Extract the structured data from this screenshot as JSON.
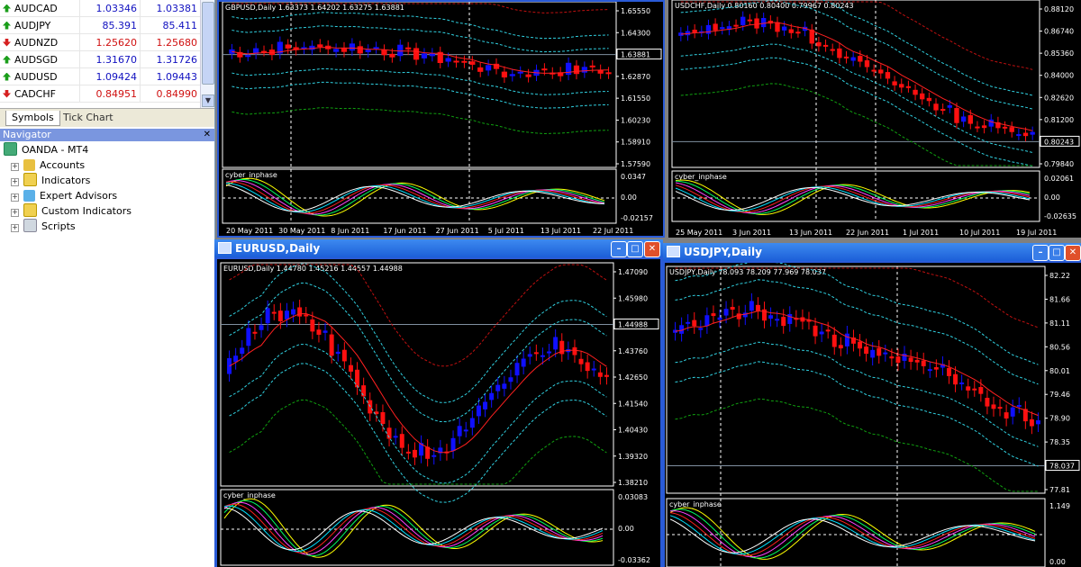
{
  "market_watch": {
    "rows": [
      {
        "symbol": "AUDCAD",
        "bid": "1.03346",
        "ask": "1.03381",
        "dir": "up",
        "color": "#1010c0"
      },
      {
        "symbol": "AUDJPY",
        "bid": "85.391",
        "ask": "85.411",
        "dir": "up",
        "color": "#1010c0"
      },
      {
        "symbol": "AUDNZD",
        "bid": "1.25620",
        "ask": "1.25680",
        "dir": "down",
        "color": "#d01010"
      },
      {
        "symbol": "AUDSGD",
        "bid": "1.31670",
        "ask": "1.31726",
        "dir": "up",
        "color": "#1010c0"
      },
      {
        "symbol": "AUDUSD",
        "bid": "1.09424",
        "ask": "1.09443",
        "dir": "up",
        "color": "#1010c0"
      },
      {
        "symbol": "CADCHF",
        "bid": "0.84951",
        "ask": "0.84990",
        "dir": "down",
        "color": "#d01010"
      }
    ],
    "tabs": [
      "Symbols",
      "Tick Chart"
    ]
  },
  "navigator": {
    "title": "Navigator",
    "root": "OANDA - MT4",
    "items": [
      "Accounts",
      "Indicators",
      "Expert Advisors",
      "Custom Indicators",
      "Scripts"
    ]
  },
  "charts": {
    "gbpusd": {
      "header": "GBPUSD,Daily  1.63373 1.64202 1.63275 1.63881",
      "prices": [
        "1.65550",
        "1.64300",
        "1.63881",
        "1.62870",
        "1.61550",
        "1.60230",
        "1.58910",
        "1.57590"
      ],
      "current": "1.63881",
      "ind_label": "cyber_inphase",
      "ind_vals": [
        "0.0347",
        "0.00",
        "-0.02157"
      ],
      "dates": [
        "20 May 2011",
        "30 May 2011",
        "8 Jun 2011",
        "17 Jun 2011",
        "27 Jun 2011",
        "5 Jul 2011",
        "13 Jul 2011",
        "22 Jul 2011"
      ]
    },
    "usdchf": {
      "header": "USDCHF,Daily  0.80160 0.80400 0.79967 0.80243",
      "prices": [
        "0.88120",
        "0.86740",
        "0.85360",
        "0.84000",
        "0.82620",
        "0.81200",
        "0.80243",
        "0.79840"
      ],
      "current": "0.80243",
      "ind_label": "cyber_inphase",
      "ind_vals": [
        "0.02061",
        "0.00",
        "-0.02635"
      ],
      "dates": [
        "25 May 2011",
        "3 Jun 2011",
        "13 Jun 2011",
        "22 Jun 2011",
        "1 Jul 2011",
        "10 Jul 2011",
        "19 Jul 2011"
      ]
    },
    "eurusd": {
      "title": "EURUSD,Daily",
      "header": "EURUSD,Daily  1.44780 1.45216 1.44557 1.44988",
      "prices": [
        "1.47090",
        "1.45980",
        "1.44988",
        "1.43760",
        "1.42650",
        "1.41540",
        "1.40430",
        "1.39320",
        "1.38210"
      ],
      "current": "1.44988",
      "ind_label": "cyber_inphase",
      "ind_vals": [
        "0.03083",
        "0.00",
        "-0.03362"
      ]
    },
    "usdjpy": {
      "title": "USDJPY,Daily",
      "header": "USDJPY,Daily  78.093 78.209 77.969 78.037",
      "prices": [
        "82.22",
        "81.66",
        "81.11",
        "80.56",
        "80.01",
        "79.46",
        "78.90",
        "78.35",
        "78.037",
        "77.81"
      ],
      "current": "78.037",
      "ind_label": "cyber_inphase",
      "ind_vals": [
        "1.149",
        "0.00"
      ]
    }
  },
  "colors": {
    "bull": "#1010ff",
    "bear": "#ff1010",
    "ma": "#ff2020",
    "band_inner": "#30d0e0",
    "band_outer_red": "#c01010",
    "band_outer_green": "#10a010",
    "grid": "#ffffff"
  }
}
